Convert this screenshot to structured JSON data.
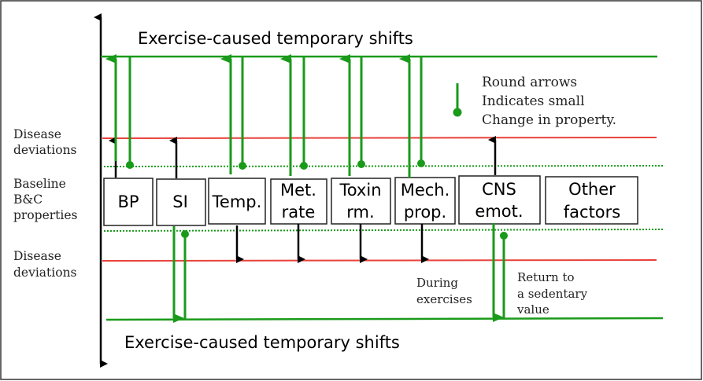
{
  "colors": {
    "green": "#1a9a1a",
    "red": "#e8413a",
    "black": "#000000"
  },
  "top_title": "Exercise-caused temporary shifts",
  "bottom_title": "Exercise-caused temporary shifts",
  "left_labels": {
    "upper_disease": [
      "Disease",
      "deviations"
    ],
    "baseline": [
      "Baseline",
      "B&C",
      "properties"
    ],
    "lower_disease": [
      "Disease",
      "deviations"
    ]
  },
  "boxes": [
    {
      "lines": [
        "BP"
      ]
    },
    {
      "lines": [
        "SI"
      ]
    },
    {
      "lines": [
        "Temp."
      ]
    },
    {
      "lines": [
        "Met.",
        "rate"
      ]
    },
    {
      "lines": [
        "Toxin",
        "rm."
      ]
    },
    {
      "lines": [
        "Mech.",
        "prop."
      ]
    },
    {
      "lines": [
        "CNS",
        "emot."
      ]
    },
    {
      "lines": [
        "Other",
        "factors"
      ]
    }
  ],
  "legend": [
    "Round arrows",
    "Indicates small",
    "Change in property."
  ],
  "during_label": [
    "During",
    "exercises"
  ],
  "return_label": [
    "Return to",
    "a sedentary",
    "value"
  ]
}
